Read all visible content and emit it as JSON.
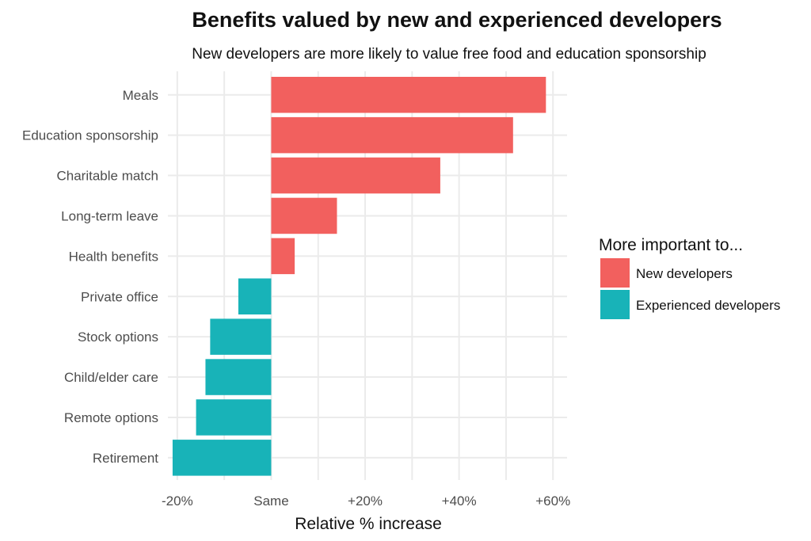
{
  "chart_data": {
    "type": "bar",
    "orientation": "horizontal",
    "title": "Benefits valued by new and experienced developers",
    "subtitle": "New developers are more likely to value free food and education sponsorship",
    "xlabel": "Relative % increase",
    "ylabel": "",
    "xlim": [
      -22,
      63
    ],
    "x_ticks": [
      {
        "value": -20,
        "label": "-20%"
      },
      {
        "value": 0,
        "label": "Same"
      },
      {
        "value": 20,
        "label": "+20%"
      },
      {
        "value": 40,
        "label": "+40%"
      },
      {
        "value": 60,
        "label": "+60%"
      }
    ],
    "categories": [
      "Meals",
      "Education sponsorship",
      "Charitable match",
      "Long-term leave",
      "Health benefits",
      "Private office",
      "Stock options",
      "Child/elder care",
      "Remote options",
      "Retirement"
    ],
    "values": [
      58.5,
      51.5,
      36,
      14,
      5,
      -7,
      -13,
      -14,
      -16,
      -21
    ],
    "groups": [
      "New developers",
      "New developers",
      "New developers",
      "New developers",
      "New developers",
      "Experienced developers",
      "Experienced developers",
      "Experienced developers",
      "Experienced developers",
      "Experienced developers"
    ],
    "grid": true,
    "legend": {
      "title": "More important to...",
      "position": "right",
      "entries": [
        {
          "label": "New developers",
          "color": "#F2605E"
        },
        {
          "label": "Experienced developers",
          "color": "#18B3B8"
        }
      ]
    }
  }
}
